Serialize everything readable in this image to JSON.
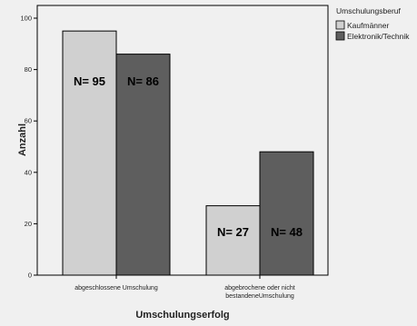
{
  "chart_data": {
    "type": "bar",
    "categories": [
      [
        "abgeschlossene Umschulung"
      ],
      [
        "abgebrochene oder nicht",
        "bestandeneUmschulung"
      ]
    ],
    "series": [
      {
        "name": "Kaufmänner",
        "values": [
          95,
          27
        ],
        "labels": [
          "N= 95",
          "N= 27"
        ],
        "color": "#d0d0d0"
      },
      {
        "name": "Elektronik/Technik",
        "values": [
          86,
          48
        ],
        "labels": [
          "N= 86",
          "N= 48"
        ],
        "color": "#5e5e5e"
      }
    ],
    "xlabel": "Umschulungserfolg",
    "ylabel": "Anzahl",
    "ylim": [
      0,
      100
    ],
    "yticks": [
      0,
      20,
      40,
      60,
      80,
      100
    ],
    "legend": {
      "title": "Umschulungsberuf",
      "placement": "right"
    },
    "plot_background": "#f0f0f0",
    "grid": false
  }
}
